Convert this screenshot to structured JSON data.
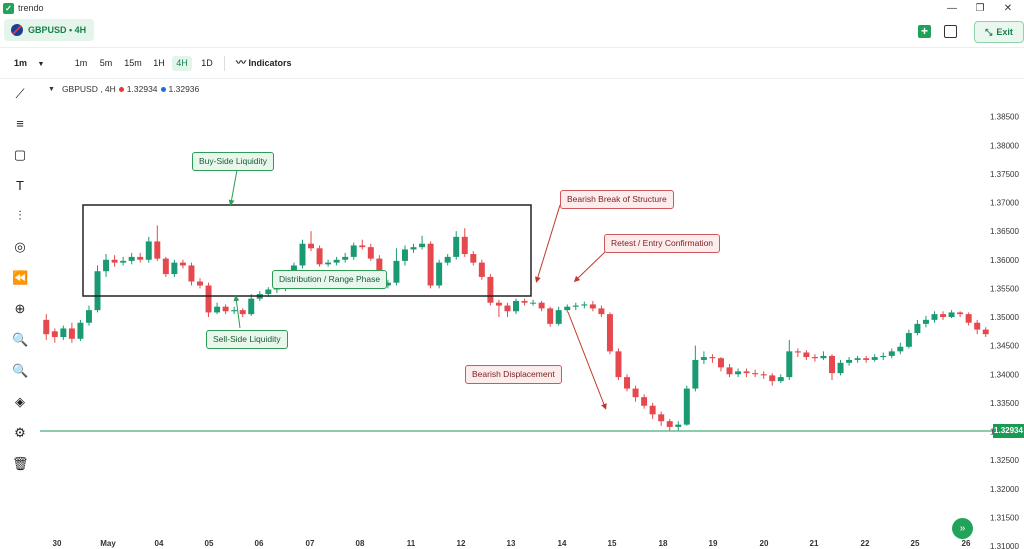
{
  "app": {
    "name": "trendo"
  },
  "header": {
    "symbol_tab": "GBPUSD • 4H",
    "exit_label": "Exit"
  },
  "toolbar": {
    "interval_select": "1m",
    "timeframes": [
      "1m",
      "5m",
      "15m",
      "1H",
      "4H",
      "1D"
    ],
    "active_timeframe": "4H",
    "indicators_label": "Indicators"
  },
  "legend": {
    "symbol": "GBPUSD , 4H",
    "bid": "1.32934",
    "ask": "1.32936",
    "bid_color": "#e53935",
    "ask_color": "#1e6fd9"
  },
  "colors": {
    "up": "#1a9a73",
    "down": "#e5484d",
    "price_line": "#1a9a55",
    "box": "#222222"
  },
  "sidebar_icons": [
    "trend-line-icon",
    "horizontal-lines-icon",
    "rectangle-icon",
    "text-icon",
    "candles-icon",
    "target-icon",
    "rewind-icon",
    "add-circle-icon",
    "zoom-in-icon",
    "zoom-out-icon",
    "layers-icon",
    "settings-icon",
    "trash-icon"
  ],
  "annotations": {
    "buy_side": "Buy-Side Liquidity",
    "sell_side": "Sell-Side Liquidity",
    "range": "Distribution / Range Phase",
    "bos": "Bearish Break of Structure",
    "retest": "Retest / Entry Confirmation",
    "displacement": "Bearish Displacement"
  },
  "current_price": "1.32934",
  "chart_data": {
    "type": "candlestick",
    "ylim": [
      1.31,
      1.39
    ],
    "y_ticks": [
      "1.38500",
      "1.38000",
      "1.37500",
      "1.37000",
      "1.36500",
      "1.36000",
      "1.35500",
      "1.35000",
      "1.34500",
      "1.34000",
      "1.33500",
      "1.33000",
      "1.32500",
      "1.32000",
      "1.31500",
      "1.31000"
    ],
    "y_values": [
      1.385,
      1.38,
      1.375,
      1.37,
      1.365,
      1.36,
      1.355,
      1.35,
      1.345,
      1.34,
      1.335,
      1.33,
      1.325,
      1.32,
      1.315,
      1.31
    ],
    "x_labels": [
      "30",
      "May",
      "04",
      "05",
      "06",
      "07",
      "08",
      "11",
      "12",
      "13",
      "14",
      "15",
      "18",
      "19",
      "20",
      "21",
      "22",
      "25",
      "26"
    ],
    "candles": [
      [
        1.3495,
        1.347,
        1.3505,
        1.346
      ],
      [
        1.3475,
        1.3465,
        1.348,
        1.3455
      ],
      [
        1.3465,
        1.348,
        1.3485,
        1.346
      ],
      [
        1.348,
        1.3462,
        1.349,
        1.3455
      ],
      [
        1.3462,
        1.349,
        1.3495,
        1.3458
      ],
      [
        1.349,
        1.3512,
        1.352,
        1.3485
      ],
      [
        1.3512,
        1.358,
        1.359,
        1.3508
      ],
      [
        1.358,
        1.36,
        1.361,
        1.357
      ],
      [
        1.36,
        1.3595,
        1.3608,
        1.3588
      ],
      [
        1.3595,
        1.3598,
        1.3605,
        1.359
      ],
      [
        1.3598,
        1.3605,
        1.3612,
        1.3592
      ],
      [
        1.3605,
        1.36,
        1.3612,
        1.3595
      ],
      [
        1.36,
        1.3632,
        1.364,
        1.3595
      ],
      [
        1.3632,
        1.3602,
        1.366,
        1.3598
      ],
      [
        1.3602,
        1.3575,
        1.3605,
        1.357
      ],
      [
        1.3575,
        1.3595,
        1.36,
        1.357
      ],
      [
        1.3595,
        1.359,
        1.36,
        1.3585
      ],
      [
        1.359,
        1.3562,
        1.3595,
        1.3555
      ],
      [
        1.3562,
        1.3555,
        1.3568,
        1.355
      ],
      [
        1.3555,
        1.3508,
        1.356,
        1.35
      ],
      [
        1.3508,
        1.3518,
        1.3525,
        1.3505
      ],
      [
        1.3518,
        1.351,
        1.3522,
        1.3505
      ],
      [
        1.351,
        1.3512,
        1.3518,
        1.3505
      ],
      [
        1.3512,
        1.3505,
        1.3515,
        1.35
      ],
      [
        1.3505,
        1.3532,
        1.354,
        1.3502
      ],
      [
        1.3532,
        1.354,
        1.3545,
        1.3528
      ],
      [
        1.354,
        1.3548,
        1.3552,
        1.3535
      ],
      [
        1.3548,
        1.355,
        1.3555,
        1.3542
      ],
      [
        1.355,
        1.356,
        1.3565,
        1.3545
      ],
      [
        1.356,
        1.359,
        1.3595,
        1.3555
      ],
      [
        1.359,
        1.3628,
        1.3635,
        1.3585
      ],
      [
        1.3628,
        1.362,
        1.365,
        1.3615
      ],
      [
        1.362,
        1.3592,
        1.3625,
        1.3588
      ],
      [
        1.3592,
        1.3595,
        1.36,
        1.3588
      ],
      [
        1.3595,
        1.36,
        1.3605,
        1.359
      ],
      [
        1.36,
        1.3605,
        1.3612,
        1.3595
      ],
      [
        1.3605,
        1.3625,
        1.363,
        1.36
      ],
      [
        1.3625,
        1.3622,
        1.3635,
        1.3618
      ],
      [
        1.3622,
        1.3602,
        1.3628,
        1.3598
      ],
      [
        1.3602,
        1.3555,
        1.3608,
        1.355
      ],
      [
        1.3555,
        1.356,
        1.3565,
        1.355
      ],
      [
        1.356,
        1.3598,
        1.362,
        1.3555
      ],
      [
        1.3598,
        1.3618,
        1.3625,
        1.359
      ],
      [
        1.3618,
        1.3622,
        1.3628,
        1.3612
      ],
      [
        1.3622,
        1.3628,
        1.3642,
        1.3618
      ],
      [
        1.3628,
        1.3555,
        1.3632,
        1.355
      ],
      [
        1.3555,
        1.3595,
        1.36,
        1.355
      ],
      [
        1.3595,
        1.3605,
        1.361,
        1.359
      ],
      [
        1.3605,
        1.364,
        1.365,
        1.36
      ],
      [
        1.364,
        1.361,
        1.3655,
        1.3605
      ],
      [
        1.361,
        1.3595,
        1.3615,
        1.359
      ],
      [
        1.3595,
        1.357,
        1.36,
        1.3565
      ],
      [
        1.357,
        1.3525,
        1.3575,
        1.352
      ],
      [
        1.3525,
        1.352,
        1.353,
        1.35
      ],
      [
        1.352,
        1.351,
        1.3525,
        1.35
      ],
      [
        1.351,
        1.3528,
        1.3532,
        1.3505
      ],
      [
        1.3528,
        1.3525,
        1.3532,
        1.352
      ],
      [
        1.3525,
        1.3525,
        1.353,
        1.352
      ],
      [
        1.3525,
        1.3515,
        1.3528,
        1.351
      ],
      [
        1.3515,
        1.3488,
        1.3518,
        1.3483
      ],
      [
        1.3488,
        1.3512,
        1.3518,
        1.3485
      ],
      [
        1.3512,
        1.3518,
        1.3522,
        1.3508
      ],
      [
        1.3518,
        1.352,
        1.3525,
        1.3512
      ],
      [
        1.352,
        1.3522,
        1.3527,
        1.3515
      ],
      [
        1.3522,
        1.3515,
        1.3528,
        1.351
      ],
      [
        1.3515,
        1.3505,
        1.352,
        1.35
      ],
      [
        1.3505,
        1.344,
        1.3508,
        1.3435
      ],
      [
        1.344,
        1.3395,
        1.3445,
        1.339
      ],
      [
        1.3395,
        1.3375,
        1.34,
        1.337
      ],
      [
        1.3375,
        1.336,
        1.338,
        1.3352
      ],
      [
        1.336,
        1.3345,
        1.3365,
        1.334
      ],
      [
        1.3345,
        1.333,
        1.335,
        1.3322
      ],
      [
        1.333,
        1.3318,
        1.3335,
        1.331
      ],
      [
        1.3318,
        1.3308,
        1.3322,
        1.3302
      ],
      [
        1.3308,
        1.3312,
        1.3318,
        1.3302
      ],
      [
        1.3312,
        1.3375,
        1.338,
        1.331
      ],
      [
        1.3375,
        1.3425,
        1.345,
        1.337
      ],
      [
        1.3425,
        1.343,
        1.344,
        1.3418
      ],
      [
        1.343,
        1.3428,
        1.3435,
        1.342
      ],
      [
        1.3428,
        1.3412,
        1.343,
        1.3405
      ],
      [
        1.3412,
        1.34,
        1.3418,
        1.3395
      ],
      [
        1.34,
        1.3405,
        1.341,
        1.3395
      ],
      [
        1.3405,
        1.3402,
        1.341,
        1.3395
      ],
      [
        1.3402,
        1.34,
        1.3408,
        1.3395
      ],
      [
        1.34,
        1.3398,
        1.3405,
        1.3392
      ],
      [
        1.3398,
        1.3388,
        1.3402,
        1.338
      ],
      [
        1.3388,
        1.3395,
        1.34,
        1.3385
      ],
      [
        1.3395,
        1.344,
        1.346,
        1.339
      ],
      [
        1.344,
        1.3438,
        1.3445,
        1.343
      ],
      [
        1.3438,
        1.343,
        1.3442,
        1.3425
      ],
      [
        1.343,
        1.3428,
        1.3435,
        1.3422
      ],
      [
        1.3428,
        1.3432,
        1.344,
        1.3425
      ],
      [
        1.3432,
        1.3402,
        1.3435,
        1.339
      ],
      [
        1.3402,
        1.342,
        1.3425,
        1.3398
      ],
      [
        1.342,
        1.3425,
        1.343,
        1.3415
      ],
      [
        1.3425,
        1.3428,
        1.3432,
        1.342
      ],
      [
        1.3428,
        1.3425,
        1.3432,
        1.342
      ],
      [
        1.3425,
        1.343,
        1.3435,
        1.3422
      ],
      [
        1.343,
        1.3432,
        1.3438,
        1.3425
      ],
      [
        1.3432,
        1.344,
        1.3445,
        1.3428
      ],
      [
        1.344,
        1.3448,
        1.3455,
        1.3435
      ],
      [
        1.3448,
        1.3472,
        1.3478,
        1.3445
      ],
      [
        1.3472,
        1.3488,
        1.3495,
        1.3468
      ],
      [
        1.3488,
        1.3495,
        1.3502,
        1.3482
      ],
      [
        1.3495,
        1.3505,
        1.351,
        1.349
      ],
      [
        1.3505,
        1.35,
        1.351,
        1.3495
      ],
      [
        1.35,
        1.3508,
        1.3512,
        1.3498
      ],
      [
        1.3508,
        1.3505,
        1.351,
        1.35
      ],
      [
        1.3505,
        1.349,
        1.3508,
        1.3485
      ],
      [
        1.349,
        1.3478,
        1.3495,
        1.347
      ],
      [
        1.3478,
        1.347,
        1.3482,
        1.3465
      ]
    ]
  }
}
